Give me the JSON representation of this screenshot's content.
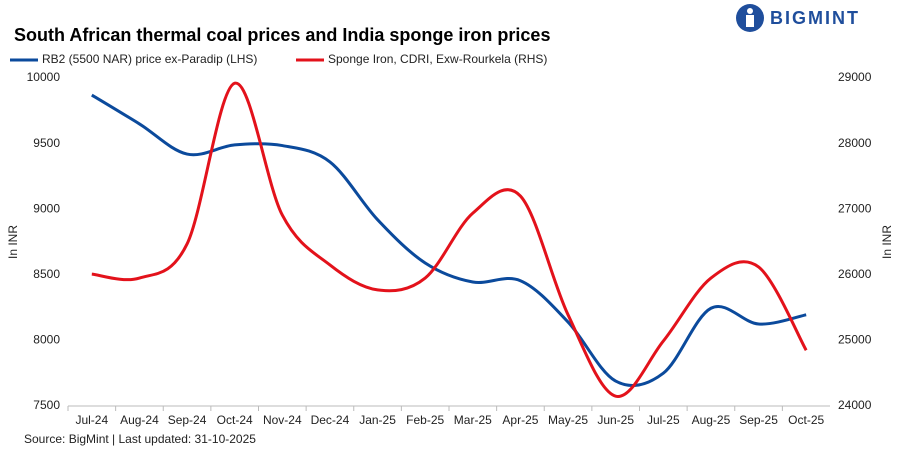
{
  "logo": "BIGMINT",
  "chart_data": {
    "type": "line",
    "title": "South African thermal coal prices and India sponge iron prices",
    "source": "Source: BigMint | Last updated: 31-10-2025",
    "y_label": "In INR",
    "y2_label": "In INR",
    "categories": [
      "Jul-24",
      "Aug-24",
      "Sep-24",
      "Oct-24",
      "Nov-24",
      "Dec-24",
      "Jan-25",
      "Feb-25",
      "Mar-25",
      "Apr-25",
      "May-25",
      "Jun-25",
      "Jul-25",
      "Aug-25",
      "Sep-25",
      "Oct-25"
    ],
    "ylim": [
      7500,
      10000
    ],
    "yticks": [
      7500,
      8000,
      8500,
      9000,
      9500,
      10000
    ],
    "y2lim": [
      24000,
      29000
    ],
    "y2ticks": [
      24000,
      25000,
      26000,
      27000,
      28000,
      29000
    ],
    "grid": false,
    "series": [
      {
        "name": "RB2 (5500 NAR) price ex-Paradip (LHS)",
        "color": "#0b4a9c",
        "values": [
          9870,
          9650,
          9420,
          9490,
          9485,
          9360,
          8920,
          8590,
          8445,
          8455,
          8140,
          7690,
          7750,
          8245,
          8125,
          8195
        ]
      },
      {
        "name": "Sponge Iron, CDRI, Exw-Rourkela (RHS)",
        "color": "#e3121b",
        "axis": "y2",
        "values": [
          26010,
          25950,
          26470,
          28920,
          26910,
          26150,
          25770,
          25950,
          26940,
          27200,
          25390,
          24150,
          24990,
          25950,
          26120,
          24850
        ]
      }
    ]
  }
}
